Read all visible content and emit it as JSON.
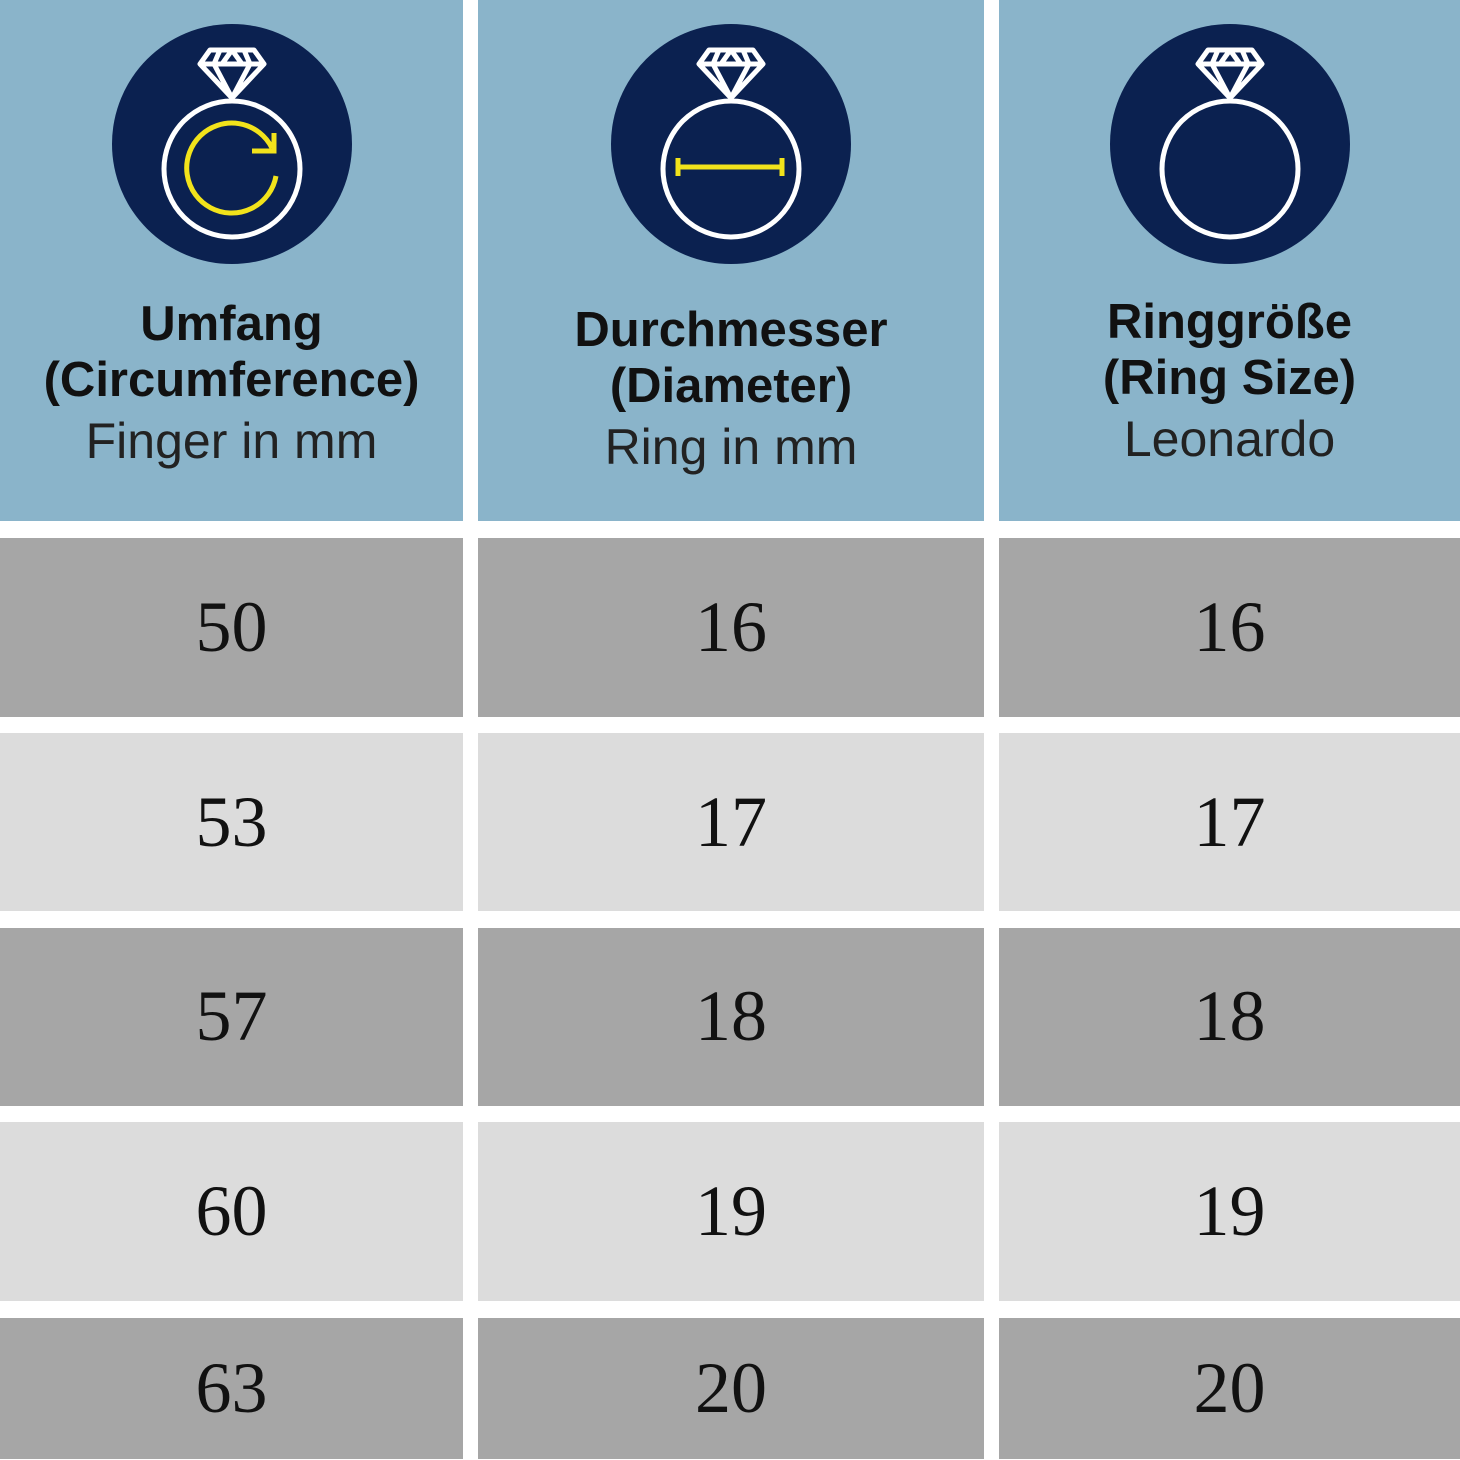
{
  "colors": {
    "header_bg": "#8ab4ca",
    "icon_bg": "#0b2150",
    "icon_line": "#ffffff",
    "icon_accent": "#f2e31b",
    "row_dark": "#a6a6a6",
    "row_light": "#dcdcdc"
  },
  "chart_data": {
    "type": "table",
    "columns": [
      {
        "title": "Umfang",
        "title2": "(Circumference)",
        "subtitle": "Finger in mm",
        "icon": "ring-circumference-icon"
      },
      {
        "title": "Durchmesser",
        "title2": "(Diameter)",
        "subtitle": "Ring in mm",
        "icon": "ring-diameter-icon"
      },
      {
        "title": "Ringgröße",
        "title2": "(Ring Size)",
        "subtitle": "Leonardo",
        "icon": "ring-size-icon"
      }
    ],
    "rows": [
      [
        "50",
        "16",
        "16"
      ],
      [
        "53",
        "17",
        "17"
      ],
      [
        "57",
        "18",
        "18"
      ],
      [
        "60",
        "19",
        "19"
      ],
      [
        "63",
        "20",
        "20"
      ]
    ]
  }
}
